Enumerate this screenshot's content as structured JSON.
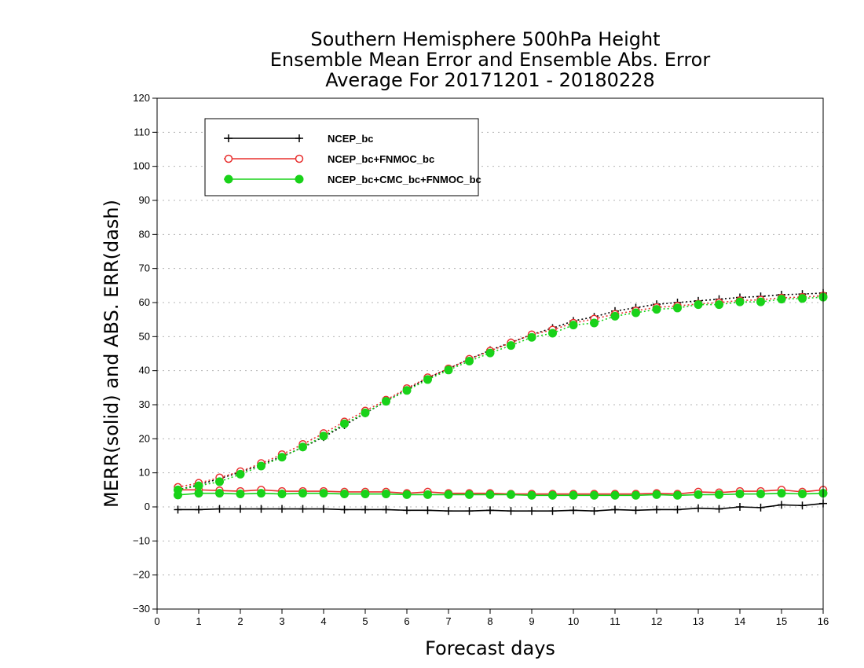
{
  "chart_data": {
    "type": "line",
    "title": [
      "Southern Hemisphere 500hPa Height",
      "Ensemble Mean Error and Ensemble Abs. Error",
      "Average For 20171201 - 20180228"
    ],
    "xlabel": "Forecast days",
    "ylabel": "MERR(solid) and ABS. ERR(dash)",
    "xlim": [
      0,
      16
    ],
    "ylim": [
      -30,
      120
    ],
    "xticks": [
      0,
      1,
      2,
      3,
      4,
      5,
      6,
      7,
      8,
      9,
      10,
      11,
      12,
      13,
      14,
      15,
      16
    ],
    "yticks": [
      -30,
      -20,
      -10,
      0,
      10,
      20,
      30,
      40,
      50,
      60,
      70,
      80,
      90,
      100,
      110,
      120
    ],
    "grid": "horizontal dotted",
    "legend_position": "top-left",
    "x": [
      0.5,
      1,
      1.5,
      2,
      2.5,
      3,
      3.5,
      4,
      4.5,
      5,
      5.5,
      6,
      6.5,
      7,
      7.5,
      8,
      8.5,
      9,
      9.5,
      10,
      10.5,
      11,
      11.5,
      12,
      12.5,
      13,
      13.5,
      14,
      14.5,
      15,
      15.5,
      16
    ],
    "series": [
      {
        "name": "NCEP_bc",
        "color": "#000000",
        "marker": "plus",
        "merr": [
          -0.8,
          -0.8,
          -0.6,
          -0.6,
          -0.6,
          -0.6,
          -0.6,
          -0.6,
          -0.8,
          -0.8,
          -0.8,
          -1.0,
          -1.0,
          -1.2,
          -1.2,
          -1.0,
          -1.2,
          -1.2,
          -1.2,
          -1.0,
          -1.2,
          -0.8,
          -1.0,
          -0.8,
          -0.8,
          -0.4,
          -0.6,
          0.0,
          -0.2,
          0.6,
          0.4,
          1.0
        ],
        "abs_err": [
          5.0,
          6.5,
          8.3,
          10.2,
          12.4,
          14.8,
          17.5,
          20.5,
          24.0,
          27.5,
          31.0,
          34.5,
          37.8,
          40.6,
          43.4,
          46.0,
          48.3,
          50.6,
          52.5,
          54.6,
          55.8,
          57.5,
          58.5,
          59.5,
          60.0,
          60.5,
          61.0,
          61.5,
          61.8,
          62.3,
          62.5,
          62.8
        ]
      },
      {
        "name": "NCEP_bc+FNMOC_bc",
        "color": "#e8302f",
        "marker": "open-circle",
        "merr": [
          5.0,
          5.0,
          4.8,
          4.6,
          5.0,
          4.6,
          4.6,
          4.6,
          4.4,
          4.4,
          4.4,
          4.0,
          4.4,
          4.0,
          4.0,
          4.0,
          3.8,
          3.8,
          3.8,
          3.8,
          3.8,
          3.8,
          3.8,
          4.0,
          3.8,
          4.4,
          4.2,
          4.6,
          4.6,
          5.0,
          4.4,
          5.0
        ],
        "abs_err": [
          5.8,
          7.0,
          8.6,
          10.4,
          12.8,
          15.4,
          18.4,
          21.6,
          25.0,
          28.2,
          31.4,
          34.8,
          38.0,
          40.6,
          43.4,
          45.8,
          48.2,
          50.6,
          52.0,
          54.0,
          55.2,
          56.6,
          57.6,
          58.6,
          59.0,
          59.6,
          60.0,
          60.6,
          60.8,
          61.4,
          61.6,
          62.0
        ]
      },
      {
        "name": "NCEP_bc+CMC_bc+FNMOC_bc",
        "color": "#19d219",
        "marker": "filled-circle",
        "merr": [
          3.5,
          4.0,
          4.0,
          3.8,
          4.0,
          3.8,
          4.0,
          4.0,
          3.8,
          3.8,
          3.8,
          3.6,
          3.6,
          3.6,
          3.6,
          3.6,
          3.6,
          3.4,
          3.4,
          3.4,
          3.4,
          3.4,
          3.4,
          3.6,
          3.4,
          3.6,
          3.6,
          3.8,
          3.8,
          4.0,
          3.8,
          4.0
        ],
        "abs_err": [
          5.0,
          6.2,
          7.4,
          9.6,
          12.0,
          14.6,
          17.6,
          20.8,
          24.4,
          27.6,
          31.0,
          34.2,
          37.4,
          40.2,
          42.8,
          45.2,
          47.4,
          49.8,
          51.0,
          53.4,
          54.0,
          56.0,
          57.0,
          58.0,
          58.4,
          59.4,
          59.4,
          60.2,
          60.2,
          61.0,
          61.2,
          61.6
        ]
      }
    ]
  }
}
